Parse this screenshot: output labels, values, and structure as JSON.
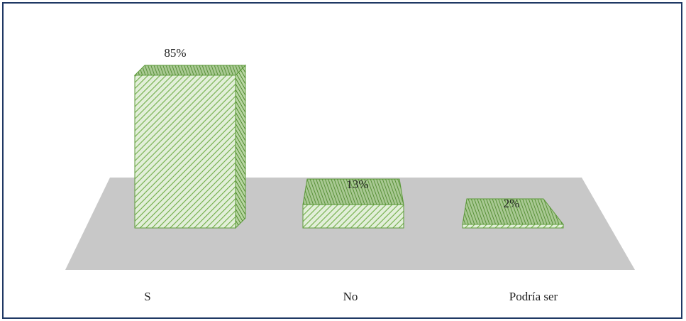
{
  "chart_data": {
    "type": "bar",
    "three_d": true,
    "title": "",
    "xlabel": "",
    "ylabel": "",
    "categories": [
      "S",
      "No",
      "Podría ser"
    ],
    "values": [
      85,
      13,
      2
    ],
    "data_labels": [
      "85%",
      "13%",
      "2%"
    ],
    "ylim": [
      0,
      100
    ],
    "grid": false,
    "legend": "none"
  },
  "colors": {
    "bar_fill": "#e2efd9",
    "bar_hatch": "#70ad47",
    "bar_edge": "#5c9a3a",
    "floor": "#c8c8c8",
    "frame_border": "#1f3864"
  }
}
